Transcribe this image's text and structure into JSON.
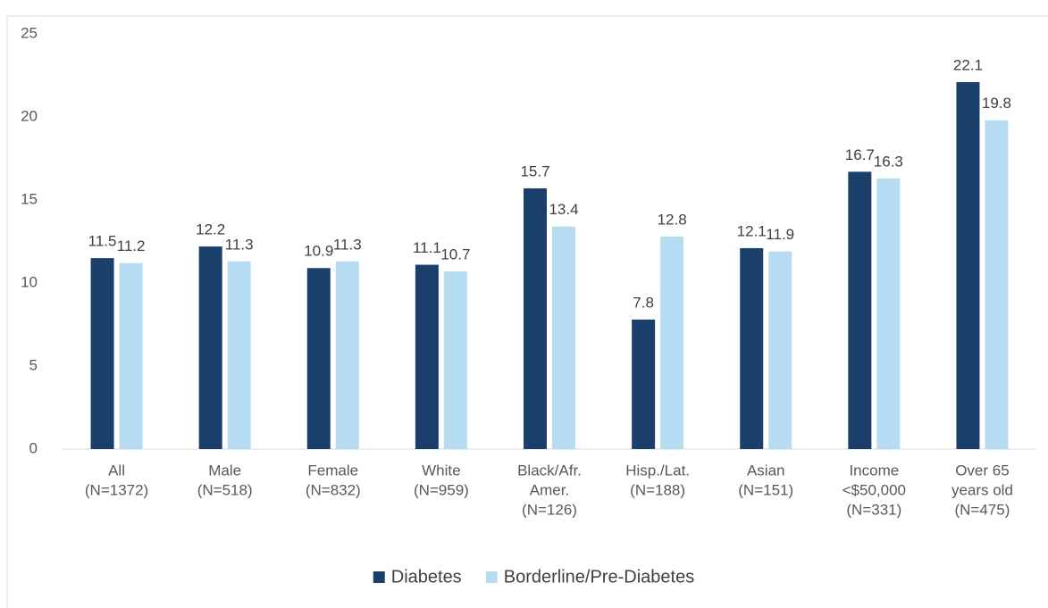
{
  "chart_data": {
    "type": "bar",
    "categories": [
      [
        "All",
        "(N=1372)"
      ],
      [
        "Male",
        "(N=518)"
      ],
      [
        "Female",
        "(N=832)"
      ],
      [
        "White",
        "(N=959)"
      ],
      [
        "Black/Afr.",
        "Amer.",
        "(N=126)"
      ],
      [
        "Hisp./Lat.",
        "(N=188)"
      ],
      [
        "Asian",
        "(N=151)"
      ],
      [
        "Income",
        "<$50,000",
        "(N=331)"
      ],
      [
        "Over 65",
        "years old",
        "(N=475)"
      ]
    ],
    "series": [
      {
        "name": "Diabetes",
        "color": "#1b3f6b",
        "values": [
          11.5,
          12.2,
          10.9,
          11.1,
          15.7,
          7.8,
          12.1,
          16.7,
          22.1
        ]
      },
      {
        "name": "Borderline/Pre-Diabetes",
        "color": "#b5dcf1",
        "values": [
          11.2,
          11.3,
          11.3,
          10.7,
          13.4,
          12.8,
          11.9,
          16.3,
          19.8
        ]
      }
    ],
    "ylim": [
      0,
      25
    ],
    "yticks": [
      0,
      5,
      10,
      15,
      20,
      25
    ],
    "grid": false,
    "legend": "bottom"
  }
}
